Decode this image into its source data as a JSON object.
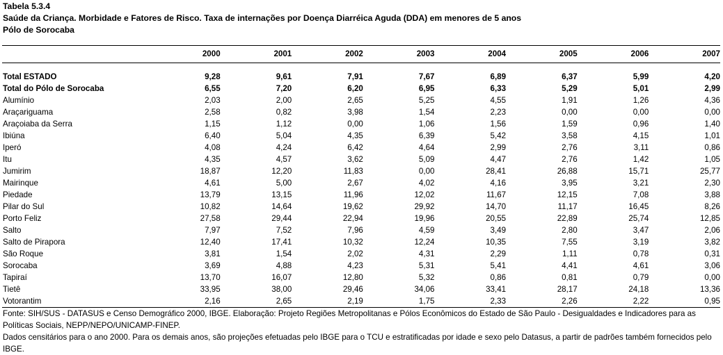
{
  "table_id": "Tabela 5.3.4",
  "title": "Saúde da Criança. Morbidade e Fatores de Risco. Taxa de internações por Doença Diarréica Aguda (DDA) em menores de 5 anos",
  "subtitle": "Pólo de Sorocaba",
  "years": [
    "2000",
    "2001",
    "2002",
    "2003",
    "2004",
    "2005",
    "2006",
    "2007"
  ],
  "totals": [
    {
      "name": "Total ESTADO",
      "values": [
        "9,28",
        "9,61",
        "7,91",
        "7,67",
        "6,89",
        "6,37",
        "5,99",
        "4,20"
      ]
    },
    {
      "name": "Total do Pólo de Sorocaba",
      "values": [
        "6,55",
        "7,20",
        "6,20",
        "6,95",
        "6,33",
        "5,29",
        "5,01",
        "2,99"
      ]
    }
  ],
  "rows": [
    {
      "name": "Alumínio",
      "values": [
        "2,03",
        "2,00",
        "2,65",
        "5,25",
        "4,55",
        "1,91",
        "1,26",
        "4,36"
      ]
    },
    {
      "name": "Araçariguama",
      "values": [
        "2,58",
        "0,82",
        "3,98",
        "1,54",
        "2,23",
        "0,00",
        "0,00",
        "0,00"
      ]
    },
    {
      "name": "Araçoiaba da Serra",
      "values": [
        "1,15",
        "1,12",
        "0,00",
        "1,06",
        "1,56",
        "1,59",
        "0,96",
        "1,40"
      ]
    },
    {
      "name": "Ibiúna",
      "values": [
        "6,40",
        "5,04",
        "4,35",
        "6,39",
        "5,42",
        "3,58",
        "4,15",
        "1,01"
      ]
    },
    {
      "name": "Iperó",
      "values": [
        "4,08",
        "4,24",
        "6,42",
        "4,64",
        "2,99",
        "2,76",
        "3,11",
        "0,86"
      ]
    },
    {
      "name": "Itu",
      "values": [
        "4,35",
        "4,57",
        "3,62",
        "5,09",
        "4,47",
        "2,76",
        "1,42",
        "1,05"
      ]
    },
    {
      "name": "Jumirim",
      "values": [
        "18,87",
        "12,20",
        "11,83",
        "0,00",
        "28,41",
        "26,88",
        "15,71",
        "25,77"
      ]
    },
    {
      "name": "Mairinque",
      "values": [
        "4,61",
        "5,00",
        "2,67",
        "4,02",
        "4,16",
        "3,95",
        "3,21",
        "2,30"
      ]
    },
    {
      "name": "Piedade",
      "values": [
        "13,79",
        "13,15",
        "11,96",
        "12,02",
        "11,67",
        "12,15",
        "7,08",
        "3,88"
      ]
    },
    {
      "name": "Pilar do Sul",
      "values": [
        "10,82",
        "14,64",
        "19,62",
        "29,92",
        "14,70",
        "11,17",
        "16,45",
        "8,26"
      ]
    },
    {
      "name": "Porto Feliz",
      "values": [
        "27,58",
        "29,44",
        "22,94",
        "19,96",
        "20,55",
        "22,89",
        "25,74",
        "12,85"
      ]
    },
    {
      "name": "Salto",
      "values": [
        "7,97",
        "7,52",
        "7,96",
        "4,59",
        "3,49",
        "2,80",
        "3,47",
        "2,06"
      ]
    },
    {
      "name": "Salto de Pirapora",
      "values": [
        "12,40",
        "17,41",
        "10,32",
        "12,24",
        "10,35",
        "7,55",
        "3,19",
        "3,82"
      ]
    },
    {
      "name": "São Roque",
      "values": [
        "3,81",
        "1,54",
        "2,02",
        "4,31",
        "2,29",
        "1,11",
        "0,78",
        "0,31"
      ]
    },
    {
      "name": "Sorocaba",
      "values": [
        "3,69",
        "4,88",
        "4,23",
        "5,31",
        "5,41",
        "4,41",
        "4,61",
        "3,06"
      ]
    },
    {
      "name": "Tapiraí",
      "values": [
        "13,70",
        "16,07",
        "12,80",
        "5,32",
        "0,86",
        "0,81",
        "0,79",
        "0,00"
      ]
    },
    {
      "name": "Tietê",
      "values": [
        "33,95",
        "38,00",
        "29,46",
        "34,06",
        "33,41",
        "28,17",
        "24,18",
        "13,36"
      ]
    },
    {
      "name": "Votorantim",
      "values": [
        "2,16",
        "2,65",
        "2,19",
        "1,75",
        "2,33",
        "2,26",
        "2,22",
        "0,95"
      ]
    }
  ],
  "footer": {
    "source": "Fonte: SIH/SUS - DATASUS e Censo Demográfico 2000, IBGE.  Elaboração: Projeto Regiões Metropolitanas e Pólos Econômicos do Estado de São Paulo - Desigualdades e Indicadores para as Políticas Sociais, NEPP/NEPO/UNICAMP-FINEP.",
    "note": "Dados censitários para o ano 2000. Para os demais anos, são projeções efetuadas pelo IBGE para o TCU e estratificadas por idade e sexo pelo Datasus, a partir de padrões também fornecidos pelo IBGE."
  }
}
